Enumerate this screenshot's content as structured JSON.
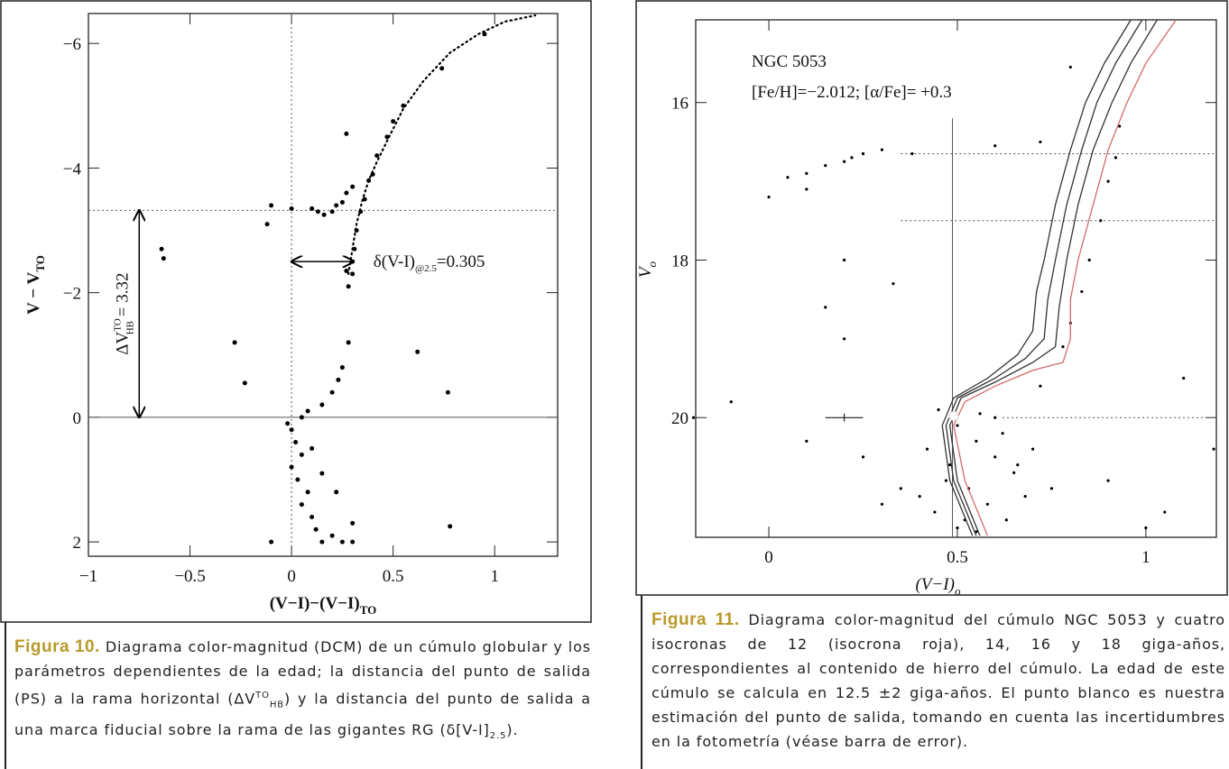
{
  "chart_data": [
    {
      "type": "scatter",
      "x_label": "(V−I)−(V−I)",
      "x_label_sub": "TO",
      "y_label": "V − V",
      "y_label_sub": "TO",
      "xlim": [
        -1,
        1.31
      ],
      "ylim": [
        2.23,
        -6.48
      ],
      "xticks": [
        {
          "value": -1,
          "label": "−1"
        },
        {
          "value": -0.5,
          "label": "−0.5"
        },
        0,
        0.5,
        1
      ],
      "yticks": [
        {
          "value": -6,
          "label": "−6"
        },
        {
          "value": -4,
          "label": "−4"
        },
        {
          "value": -2,
          "label": "−2"
        },
        0,
        2
      ],
      "series": [
        {
          "kind": "points",
          "color": "#000000",
          "x": [
            -0.12,
            -0.1,
            0.0,
            0.1,
            0.13,
            0.16,
            0.2,
            0.22,
            0.25,
            0.27,
            0.3,
            0.28,
            0.3,
            0.3,
            0.31,
            0.32,
            0.34,
            0.36,
            0.38,
            0.4,
            0.42,
            0.47,
            0.5,
            0.55,
            0.74,
            0.95,
            0.28,
            0.25,
            0.23,
            0.2,
            0.15,
            0.05,
            -0.28,
            -0.23,
            0.27,
            0.27,
            0.62,
            0.77,
            -0.64,
            -0.63,
            0.78,
            0.0,
            0.02,
            0.05,
            0.0,
            0.03,
            0.08,
            0.05,
            0.1,
            0.12,
            0.15,
            0.2,
            0.25,
            -0.1,
            0.3,
            0.1,
            0.15,
            -0.02,
            0.08,
            0.22,
            0.3
          ],
          "values": [
            -3.1,
            -3.4,
            -3.35,
            -3.35,
            -3.3,
            -3.25,
            -3.3,
            -3.4,
            -3.45,
            -3.6,
            -3.7,
            -2.1,
            -2.3,
            -2.5,
            -2.7,
            -3.0,
            -3.3,
            -3.5,
            -3.8,
            -3.9,
            -4.2,
            -4.5,
            -4.75,
            -5.0,
            -5.6,
            -6.15,
            -1.2,
            -0.8,
            -0.6,
            -0.4,
            -0.2,
            0.0,
            -1.2,
            -0.55,
            -4.55,
            -2.35,
            -1.05,
            -0.4,
            -2.7,
            -2.55,
            1.75,
            0.2,
            0.4,
            0.6,
            0.8,
            1.0,
            1.2,
            1.4,
            1.6,
            1.8,
            2.0,
            1.9,
            2.0,
            2.0,
            1.7,
            0.5,
            0.9,
            0.1,
            -0.1,
            1.2,
            2.0
          ]
        },
        {
          "kind": "dotted-line",
          "color": "#000000",
          "x": [
            0.28,
            0.3,
            0.32,
            0.35,
            0.38,
            0.42,
            0.48,
            0.55,
            0.65,
            0.78,
            0.92,
            1.05,
            1.2
          ],
          "values": [
            -2.3,
            -2.7,
            -3.1,
            -3.5,
            -3.8,
            -4.1,
            -4.5,
            -4.95,
            -5.4,
            -5.85,
            -6.15,
            -6.35,
            -6.45
          ]
        }
      ],
      "ref_lines": [
        {
          "x": 0,
          "style": "dotted"
        },
        {
          "y": 0,
          "style": "solid"
        },
        {
          "y": -3.32,
          "style": "dotted"
        }
      ],
      "hb_arrow": {
        "x": -0.75,
        "y": [
          0,
          -3.32
        ],
        "label": [
          "ΔV",
          "TO",
          "HB",
          " = 3.32"
        ]
      },
      "color_arrow": {
        "y": -2.5,
        "x": [
          0,
          0.305
        ],
        "label": [
          "δ(V-I)",
          "@2.5",
          "=0.305"
        ]
      }
    },
    {
      "type": "scatter",
      "x_label": "(V−I)",
      "x_label_sub": "o",
      "y_label": "V",
      "y_label_sub": "o",
      "title": "NGC 5053",
      "subtitle": "[Fe/H]=−2.012; [α/Fe]= +0.3",
      "xlim": [
        -0.194,
        1.187
      ],
      "ylim": [
        21.52,
        14.95
      ],
      "xticks": [
        0,
        0.5,
        1
      ],
      "yticks": [
        16,
        18,
        20
      ],
      "series": [
        {
          "kind": "points",
          "color": "#000000",
          "x": [
            0.0,
            0.05,
            0.1,
            0.15,
            0.2,
            0.25,
            0.3,
            0.38,
            0.6,
            0.72,
            0.1,
            0.22,
            0.2,
            0.15,
            0.33,
            0.2,
            0.93,
            0.8,
            -0.2,
            -0.1,
            1.1,
            1.18,
            0.1,
            1.05,
            0.45,
            0.5,
            0.55,
            0.6,
            0.65,
            0.42,
            0.48,
            0.53,
            0.58,
            0.63,
            0.68,
            0.44,
            0.5,
            0.56,
            0.62,
            0.7,
            0.47,
            0.52,
            0.6,
            0.66,
            0.75,
            0.4,
            0.55,
            0.72,
            0.8,
            0.85,
            0.88,
            0.9,
            0.92,
            0.83,
            0.78,
            0.3,
            0.35,
            0.9,
            1.0,
            0.25
          ],
          "values": [
            17.2,
            16.95,
            16.9,
            16.8,
            16.75,
            16.65,
            16.6,
            16.65,
            16.55,
            16.5,
            17.1,
            16.7,
            18.0,
            18.6,
            18.3,
            19.0,
            16.3,
            15.55,
            20.0,
            19.8,
            19.5,
            20.4,
            20.3,
            21.2,
            19.9,
            20.1,
            20.3,
            20.5,
            20.7,
            20.4,
            20.6,
            20.9,
            21.1,
            21.3,
            21.0,
            21.2,
            21.4,
            19.95,
            20.2,
            20.4,
            20.8,
            21.3,
            20.0,
            20.6,
            20.9,
            21.0,
            21.45,
            19.6,
            18.8,
            18.0,
            17.5,
            17.0,
            16.7,
            18.4,
            19.1,
            21.1,
            20.9,
            20.8,
            21.4,
            20.5
          ]
        },
        {
          "kind": "line",
          "color": "#d46a6a",
          "x": [
            0.58,
            0.52,
            0.49,
            0.52,
            0.6,
            0.7,
            0.78,
            0.8,
            0.8,
            0.82,
            0.86,
            0.9,
            0.95,
            1.0,
            1.08
          ],
          "values": [
            21.5,
            20.8,
            20.1,
            19.8,
            19.6,
            19.4,
            19.3,
            19.0,
            18.5,
            18.0,
            17.3,
            16.6,
            16.0,
            15.5,
            14.95
          ]
        },
        {
          "kind": "line",
          "color": "#333333",
          "x": [
            0.56,
            0.5,
            0.48,
            0.51,
            0.6,
            0.7,
            0.76,
            0.77,
            0.79,
            0.82,
            0.86,
            0.91,
            0.96,
            1.03
          ],
          "values": [
            21.5,
            20.8,
            20.1,
            19.75,
            19.55,
            19.3,
            19.1,
            18.6,
            18.0,
            17.3,
            16.6,
            16.0,
            15.5,
            14.95
          ]
        },
        {
          "kind": "line",
          "color": "#333333",
          "x": [
            0.55,
            0.49,
            0.47,
            0.5,
            0.6,
            0.68,
            0.73,
            0.74,
            0.76,
            0.79,
            0.83,
            0.87,
            0.92,
            0.99
          ],
          "values": [
            21.5,
            20.8,
            20.1,
            19.75,
            19.5,
            19.25,
            19.0,
            18.5,
            18.0,
            17.3,
            16.6,
            16.0,
            15.5,
            14.95
          ]
        },
        {
          "kind": "line",
          "color": "#333333",
          "x": [
            0.54,
            0.48,
            0.46,
            0.49,
            0.58,
            0.66,
            0.7,
            0.71,
            0.73,
            0.76,
            0.8,
            0.84,
            0.89,
            0.96
          ],
          "values": [
            21.5,
            20.8,
            20.1,
            19.75,
            19.5,
            19.2,
            18.9,
            18.4,
            18.0,
            17.3,
            16.6,
            16.0,
            15.5,
            14.95
          ]
        }
      ],
      "ref_lines": [
        {
          "x": 0.487,
          "y": [
            16.2,
            21.52
          ],
          "style": "solid"
        },
        {
          "y": 16.65,
          "x": [
            0.35,
            1.187
          ],
          "style": "dotted"
        },
        {
          "y": 17.5,
          "x": [
            0.35,
            1.187
          ],
          "style": "dotted"
        },
        {
          "y": 20,
          "x": [
            0.62,
            1.187
          ],
          "style": "dotted"
        }
      ],
      "error_bar": {
        "x": 0.2,
        "y": 20,
        "xerr": 0.05,
        "yerr": 0.05
      },
      "turnoff": {
        "x": 0.49,
        "y": 19.98
      }
    }
  ],
  "captions": [
    {
      "label": "Figura 10.",
      "parts": [
        "Diagrama color-magnitud (DCM) de un cúmulo globular y los parámetros dependientes de la edad; la distancia del punto de salida (PS) a la rama horizontal (ΔV",
        "TO",
        "HB",
        ") y la distancia del punto de salida a una marca fiducial sobre la rama de las gigantes RG (δ[V-I]",
        "2.5",
        ")."
      ]
    },
    {
      "label": "Figura 11.",
      "parts": [
        "Diagrama color-magnitud del cúmulo NGC 5053 y cuatro isocronas de 12 (isocrona roja), 14, 16 y 18 giga-años, correspondientes al contenido de hierro del cúmulo. La edad de este cúmulo se calcula en 12.5 ±2 giga-años. El punto blanco es nuestra estimación del punto de salida, tomando en cuenta las incertidumbres en la fotometría (véase barra de error)."
      ]
    }
  ]
}
